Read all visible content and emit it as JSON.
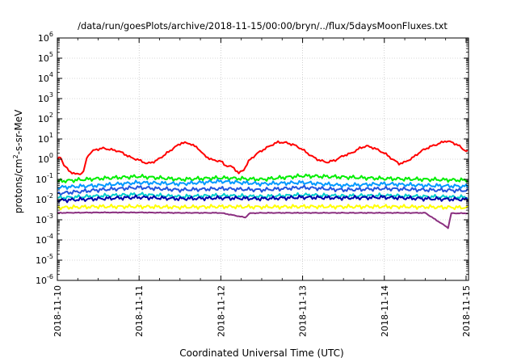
{
  "chart_data": {
    "type": "line",
    "title": "/data/run/goesPlots/archive/2018-11-15/00:00/bryn/../flux/5daysMoonFluxes.txt",
    "xlabel": "Coordinated Universal Time (UTC)",
    "ylabel": {
      "base": "protons/cm",
      "sup": "2",
      "rest": "-s-sr-MeV"
    },
    "x_ticks": [
      "2018-11-10",
      "2018-11-11",
      "2018-11-12",
      "2018-11-13",
      "2018-11-14",
      "2018-11-15"
    ],
    "x_range_days": [
      0,
      5.03
    ],
    "y_scale": "log",
    "ylim": [
      1e-06,
      1000000.0
    ],
    "y_ticks": [
      {
        "base": "10",
        "exp": "6"
      },
      {
        "base": "10",
        "exp": "5"
      },
      {
        "base": "10",
        "exp": "4"
      },
      {
        "base": "10",
        "exp": "3"
      },
      {
        "base": "10",
        "exp": "2"
      },
      {
        "base": "10",
        "exp": "1"
      },
      {
        "base": "10",
        "exp": "0"
      },
      {
        "base": "10",
        "exp": "-1"
      },
      {
        "base": "10",
        "exp": "-2"
      },
      {
        "base": "10",
        "exp": "-3"
      },
      {
        "base": "10",
        "exp": "-4"
      },
      {
        "base": "10",
        "exp": "-5"
      },
      {
        "base": "10",
        "exp": "-6"
      }
    ],
    "grid": true,
    "series": [
      {
        "color": "#ff0000",
        "points": [
          [
            0,
            1.0
          ],
          [
            0.04,
            1.3
          ],
          [
            0.08,
            0.5
          ],
          [
            0.15,
            0.25
          ],
          [
            0.22,
            0.18
          ],
          [
            0.3,
            0.2
          ],
          [
            0.33,
            0.3
          ],
          [
            0.36,
            1.2
          ],
          [
            0.4,
            2.0
          ],
          [
            0.45,
            2.8
          ],
          [
            0.55,
            3.5
          ],
          [
            0.65,
            3.0
          ],
          [
            0.75,
            2.5
          ],
          [
            0.8,
            2.0
          ],
          [
            0.9,
            1.2
          ],
          [
            1.0,
            0.9
          ],
          [
            1.1,
            0.6
          ],
          [
            1.2,
            0.8
          ],
          [
            1.3,
            1.5
          ],
          [
            1.42,
            3.5
          ],
          [
            1.52,
            6.5
          ],
          [
            1.62,
            6.0
          ],
          [
            1.72,
            3.5
          ],
          [
            1.8,
            1.5
          ],
          [
            1.9,
            0.9
          ],
          [
            2.0,
            0.8
          ],
          [
            2.05,
            0.5
          ],
          [
            2.15,
            0.4
          ],
          [
            2.22,
            0.2
          ],
          [
            2.28,
            0.3
          ],
          [
            2.35,
            0.9
          ],
          [
            2.45,
            2.0
          ],
          [
            2.55,
            3.5
          ],
          [
            2.62,
            5.0
          ],
          [
            2.7,
            7.0
          ],
          [
            2.8,
            6.5
          ],
          [
            2.9,
            5.0
          ],
          [
            3.0,
            3.0
          ],
          [
            3.1,
            1.5
          ],
          [
            3.2,
            0.9
          ],
          [
            3.3,
            0.7
          ],
          [
            3.4,
            0.9
          ],
          [
            3.5,
            1.5
          ],
          [
            3.6,
            2.0
          ],
          [
            3.7,
            3.5
          ],
          [
            3.78,
            4.5
          ],
          [
            3.88,
            3.5
          ],
          [
            3.95,
            2.5
          ],
          [
            4.0,
            2.0
          ],
          [
            4.1,
            1.0
          ],
          [
            4.18,
            0.6
          ],
          [
            4.25,
            0.7
          ],
          [
            4.35,
            1.2
          ],
          [
            4.45,
            2.5
          ],
          [
            4.55,
            4.0
          ],
          [
            4.65,
            5.5
          ],
          [
            4.75,
            8.0
          ],
          [
            4.82,
            7.0
          ],
          [
            4.9,
            5.0
          ],
          [
            4.97,
            3.0
          ],
          [
            5.03,
            2.3
          ]
        ]
      },
      {
        "color": "#00ee00",
        "points": [
          [
            0,
            0.08
          ],
          [
            0.5,
            0.11
          ],
          [
            1.0,
            0.14
          ],
          [
            1.5,
            0.1
          ],
          [
            2.0,
            0.12
          ],
          [
            2.5,
            0.1
          ],
          [
            3.0,
            0.15
          ],
          [
            3.5,
            0.13
          ],
          [
            4.0,
            0.11
          ],
          [
            4.5,
            0.1
          ],
          [
            5.03,
            0.09
          ]
        ]
      },
      {
        "color": "#0099ff",
        "points": [
          [
            0,
            0.04
          ],
          [
            0.5,
            0.05
          ],
          [
            1.0,
            0.07
          ],
          [
            1.5,
            0.06
          ],
          [
            2.0,
            0.08
          ],
          [
            2.5,
            0.06
          ],
          [
            3.0,
            0.07
          ],
          [
            3.5,
            0.05
          ],
          [
            4.0,
            0.06
          ],
          [
            4.5,
            0.05
          ],
          [
            5.03,
            0.045
          ]
        ]
      },
      {
        "color": "#2255dd",
        "points": [
          [
            0,
            0.02
          ],
          [
            0.5,
            0.03
          ],
          [
            1.0,
            0.04
          ],
          [
            1.5,
            0.03
          ],
          [
            2.0,
            0.035
          ],
          [
            2.5,
            0.03
          ],
          [
            3.0,
            0.04
          ],
          [
            3.5,
            0.03
          ],
          [
            4.0,
            0.035
          ],
          [
            4.5,
            0.03
          ],
          [
            5.03,
            0.028
          ]
        ]
      },
      {
        "color": "#00cccc",
        "points": [
          [
            0,
            0.012
          ],
          [
            0.5,
            0.015
          ],
          [
            1.0,
            0.018
          ],
          [
            1.5,
            0.014
          ],
          [
            2.0,
            0.016
          ],
          [
            2.5,
            0.014
          ],
          [
            3.0,
            0.017
          ],
          [
            3.5,
            0.015
          ],
          [
            4.0,
            0.016
          ],
          [
            4.5,
            0.014
          ],
          [
            5.03,
            0.013
          ]
        ]
      },
      {
        "color": "#0000aa",
        "points": [
          [
            0,
            0.009
          ],
          [
            0.5,
            0.011
          ],
          [
            1.0,
            0.013
          ],
          [
            1.5,
            0.011
          ],
          [
            2.0,
            0.012
          ],
          [
            2.5,
            0.011
          ],
          [
            3.0,
            0.013
          ],
          [
            3.5,
            0.012
          ],
          [
            4.0,
            0.013
          ],
          [
            4.5,
            0.011
          ],
          [
            5.03,
            0.01
          ]
        ]
      },
      {
        "color": "#ffff00",
        "points": [
          [
            0,
            0.004
          ],
          [
            0.5,
            0.0045
          ],
          [
            1.0,
            0.0045
          ],
          [
            1.5,
            0.0042
          ],
          [
            2.0,
            0.0045
          ],
          [
            2.5,
            0.0043
          ],
          [
            3.0,
            0.0045
          ],
          [
            3.5,
            0.0044
          ],
          [
            4.0,
            0.0045
          ],
          [
            4.5,
            0.0043
          ],
          [
            5.03,
            0.004
          ]
        ]
      },
      {
        "color": "#8b3080",
        "points": [
          [
            0,
            0.0022
          ],
          [
            0.5,
            0.0023
          ],
          [
            1.0,
            0.0023
          ],
          [
            1.5,
            0.0022
          ],
          [
            2.0,
            0.0022
          ],
          [
            2.3,
            0.0013
          ],
          [
            2.35,
            0.0021
          ],
          [
            2.5,
            0.0022
          ],
          [
            3.0,
            0.0022
          ],
          [
            3.5,
            0.0022
          ],
          [
            4.0,
            0.0022
          ],
          [
            4.5,
            0.0022
          ],
          [
            4.78,
            0.0004
          ],
          [
            4.82,
            0.0021
          ],
          [
            5.03,
            0.0021
          ]
        ]
      }
    ]
  }
}
